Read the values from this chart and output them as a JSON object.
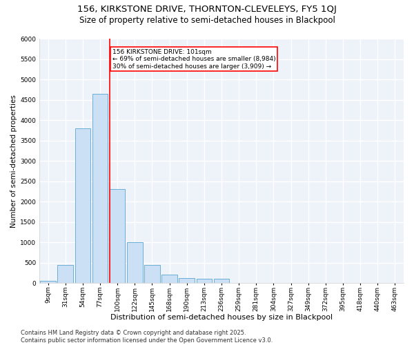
{
  "title1": "156, KIRKSTONE DRIVE, THORNTON-CLEVELEYS, FY5 1QJ",
  "title2": "Size of property relative to semi-detached houses in Blackpool",
  "xlabel": "Distribution of semi-detached houses by size in Blackpool",
  "ylabel": "Number of semi-detached properties",
  "bins": [
    "9sqm",
    "31sqm",
    "54sqm",
    "77sqm",
    "100sqm",
    "122sqm",
    "145sqm",
    "168sqm",
    "190sqm",
    "213sqm",
    "236sqm",
    "259sqm",
    "281sqm",
    "304sqm",
    "327sqm",
    "349sqm",
    "372sqm",
    "395sqm",
    "418sqm",
    "440sqm",
    "463sqm"
  ],
  "values": [
    50,
    450,
    3800,
    4650,
    2300,
    1000,
    450,
    200,
    125,
    100,
    100,
    0,
    0,
    0,
    0,
    0,
    0,
    0,
    0,
    0,
    0
  ],
  "bar_color": "#cce0f5",
  "bar_edge_color": "#6aaed6",
  "vline_color": "red",
  "annotation_text": "156 KIRKSTONE DRIVE: 101sqm\n← 69% of semi-detached houses are smaller (8,984)\n30% of semi-detached houses are larger (3,909) →",
  "annotation_box_color": "white",
  "annotation_box_edge_color": "red",
  "ylim": [
    0,
    6000
  ],
  "yticks": [
    0,
    500,
    1000,
    1500,
    2000,
    2500,
    3000,
    3500,
    4000,
    4500,
    5000,
    5500,
    6000
  ],
  "bg_color": "#eef2f9",
  "grid_color": "white",
  "footer": "Contains HM Land Registry data © Crown copyright and database right 2025.\nContains public sector information licensed under the Open Government Licence v3.0.",
  "title1_fontsize": 9.5,
  "title2_fontsize": 8.5,
  "xlabel_fontsize": 8,
  "ylabel_fontsize": 7.5,
  "tick_fontsize": 6.5,
  "footer_fontsize": 6.0,
  "annotation_fontsize": 6.5
}
